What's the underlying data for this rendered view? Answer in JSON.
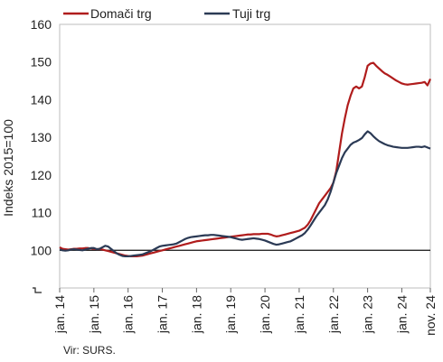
{
  "chart_data": {
    "type": "line",
    "ylabel": "Indeks 2015=100",
    "ylim": [
      90,
      160
    ],
    "y_ticks": [
      100,
      110,
      120,
      130,
      140,
      150,
      160
    ],
    "axis_break_marker": true,
    "reference_line": 100,
    "grid": false,
    "legend_position": "top-left",
    "x_tick_labels": [
      "jan. 14",
      "jan. 15",
      "jan. 16",
      "jan. 17",
      "jan. 18",
      "jan. 19",
      "jan. 20",
      "jan. 21",
      "jan. 22",
      "jan. 23",
      "jan. 24",
      "nov. 24"
    ],
    "x_tick_months": [
      0,
      12,
      24,
      36,
      48,
      60,
      72,
      84,
      96,
      108,
      120,
      130
    ],
    "x_start": "jan. 14",
    "series": [
      {
        "name": "Domači trg",
        "color": "#b01c1c",
        "values": [
          100.8,
          100.4,
          100.3,
          100.2,
          100.3,
          100.4,
          100.4,
          100.5,
          100.5,
          100.6,
          100.6,
          100.5,
          100.4,
          100.3,
          100.3,
          100.2,
          100.0,
          99.8,
          99.6,
          99.4,
          99.2,
          99.0,
          98.8,
          98.6,
          98.5,
          98.4,
          98.4,
          98.4,
          98.5,
          98.6,
          98.8,
          99.0,
          99.2,
          99.4,
          99.6,
          99.8,
          100.0,
          100.2,
          100.4,
          100.6,
          100.8,
          101.0,
          101.2,
          101.4,
          101.6,
          101.8,
          102.0,
          102.2,
          102.4,
          102.5,
          102.6,
          102.7,
          102.8,
          102.9,
          103.0,
          103.1,
          103.2,
          103.3,
          103.4,
          103.5,
          103.6,
          103.7,
          103.8,
          103.9,
          104.0,
          104.1,
          104.2,
          104.2,
          104.3,
          104.3,
          104.3,
          104.4,
          104.4,
          104.4,
          104.2,
          103.9,
          103.7,
          103.8,
          104.0,
          104.2,
          104.4,
          104.6,
          104.8,
          105.0,
          105.2,
          105.6,
          106.0,
          106.8,
          108.0,
          109.5,
          111.0,
          112.5,
          113.5,
          114.5,
          115.5,
          116.5,
          118.0,
          121.0,
          126.0,
          131.0,
          135.0,
          138.5,
          141.0,
          143.0,
          143.5,
          143.0,
          143.5,
          146.0,
          149.0,
          149.6,
          149.8,
          149.0,
          148.3,
          147.6,
          147.0,
          146.6,
          146.1,
          145.6,
          145.1,
          144.7,
          144.3,
          144.1,
          144.0,
          144.1,
          144.2,
          144.3,
          144.4,
          144.5,
          144.7,
          143.8,
          145.5
        ]
      },
      {
        "name": "Tuji trg",
        "color": "#2b3a55",
        "values": [
          100.2,
          100.0,
          99.9,
          100.0,
          100.2,
          100.3,
          100.2,
          100.1,
          100.0,
          100.2,
          100.4,
          100.6,
          100.6,
          100.3,
          100.4,
          100.8,
          101.2,
          101.0,
          100.4,
          99.8,
          99.2,
          98.8,
          98.5,
          98.4,
          98.4,
          98.5,
          98.6,
          98.7,
          98.8,
          98.9,
          99.2,
          99.5,
          99.8,
          100.2,
          100.6,
          101.0,
          101.2,
          101.3,
          101.4,
          101.5,
          101.6,
          101.8,
          102.2,
          102.6,
          103.0,
          103.3,
          103.5,
          103.6,
          103.7,
          103.8,
          103.9,
          104.0,
          104.0,
          104.1,
          104.1,
          104.0,
          103.9,
          103.8,
          103.7,
          103.6,
          103.5,
          103.3,
          103.1,
          102.9,
          102.8,
          102.9,
          103.0,
          103.1,
          103.2,
          103.1,
          103.0,
          102.8,
          102.6,
          102.3,
          102.0,
          101.7,
          101.5,
          101.6,
          101.8,
          102.0,
          102.2,
          102.4,
          102.8,
          103.2,
          103.6,
          104.0,
          104.6,
          105.5,
          106.6,
          107.8,
          109.0,
          110.0,
          111.0,
          112.0,
          113.5,
          115.5,
          118.0,
          120.5,
          122.5,
          124.5,
          126.0,
          127.0,
          128.0,
          128.6,
          128.9,
          129.3,
          129.8,
          130.8,
          131.6,
          131.1,
          130.3,
          129.6,
          129.0,
          128.6,
          128.2,
          127.9,
          127.7,
          127.5,
          127.4,
          127.3,
          127.2,
          127.2,
          127.2,
          127.3,
          127.4,
          127.5,
          127.5,
          127.4,
          127.6,
          127.3,
          127.0
        ]
      }
    ]
  },
  "source_text": "Vir: SURS."
}
